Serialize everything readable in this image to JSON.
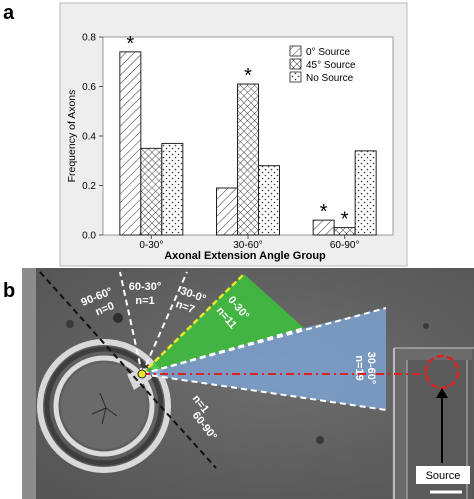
{
  "panels": {
    "a": "a",
    "b": "b"
  },
  "chart_data": {
    "type": "bar",
    "categories": [
      "0-30°",
      "30-60°",
      "60-90°"
    ],
    "series": [
      {
        "name": "0° Source",
        "values": [
          0.74,
          0.19,
          0.06
        ],
        "pattern": "diagonal-hatch"
      },
      {
        "name": "45° Source",
        "values": [
          0.35,
          0.61,
          0.03
        ],
        "pattern": "crosshatch"
      },
      {
        "name": "No Source",
        "values": [
          0.37,
          0.28,
          0.34
        ],
        "pattern": "dots"
      }
    ],
    "significance_markers": [
      {
        "category": "0-30°",
        "series": "0° Source",
        "text": "*"
      },
      {
        "category": "30-60°",
        "series": "45° Source",
        "text": "*"
      },
      {
        "category": "60-90°",
        "series": "0° Source",
        "text": "*"
      },
      {
        "category": "60-90°",
        "series": "45° Source",
        "text": "*"
      }
    ],
    "xlabel": "Axonal Extension Angle Group",
    "ylabel": "Frequency of Axons",
    "ylim": [
      0,
      0.8
    ],
    "yticks": [
      "0.0",
      "0.2",
      "0.4",
      "0.6",
      "0.8"
    ],
    "legend_position": "top-right"
  },
  "micrograph": {
    "sectors": [
      {
        "angle_label": "90-60°",
        "n_label": "n=0"
      },
      {
        "angle_label": "60-30°",
        "n_label": "n=1"
      },
      {
        "angle_label": "30-0°",
        "n_label": "n=7"
      },
      {
        "angle_label": "0-30°",
        "n_label": "n=11"
      },
      {
        "angle_label": "30-60°",
        "n_label": "n=19"
      },
      {
        "angle_label": "60-90°",
        "n_label": "n=1"
      }
    ],
    "source_label": "Source",
    "colors": {
      "green_sector": "#3cc23c",
      "blue_sector": "#7ea7d8",
      "source_marker": "#e0201e",
      "yellow_line": "#e8e82a"
    }
  }
}
